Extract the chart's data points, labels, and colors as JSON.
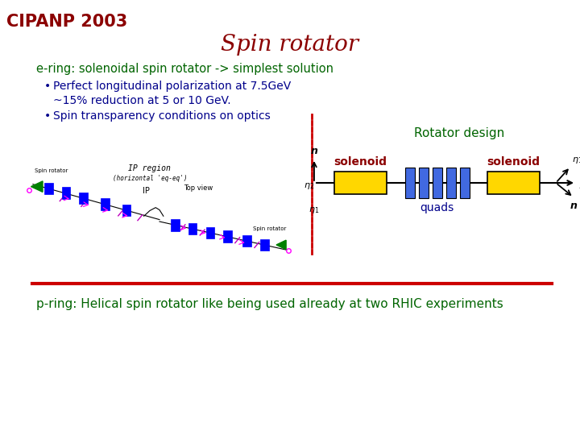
{
  "title": "Spin rotator",
  "title_color": "#8B0000",
  "title_fontsize": 20,
  "bg_color": "#ffffff",
  "cipanp_text": "CIPANP 2003",
  "cipanp_color": "#8B0000",
  "cipanp_fontsize": 15,
  "ering_text": "e-ring: solenoidal spin rotator -> simplest solution",
  "ering_color": "#006400",
  "bullet1a": "Perfect longitudinal polarization at 7.5GeV",
  "bullet1b": "~15% reduction at 5 or 10 GeV.",
  "bullet2": "Spin transparency conditions on optics",
  "bullet_color": "#00008B",
  "rotator_design_text": "Rotator design",
  "rotator_design_color": "#006400",
  "solenoid_left_text": "solenoid",
  "solenoid_right_text": "solenoid",
  "solenoid_text_color": "#8B0000",
  "quads_text": "quads",
  "quads_color": "#00008B",
  "pring_text": "p-ring: Helical spin rotator like being used already at two RHIC experiments",
  "pring_color": "#006400",
  "pring_fontsize": 11,
  "separator_color": "#CC0000",
  "solenoid_fill": "#FFD700",
  "quads_fill": "#4169E1",
  "axis_color": "#000000",
  "dashed_line_color": "#CC0000"
}
